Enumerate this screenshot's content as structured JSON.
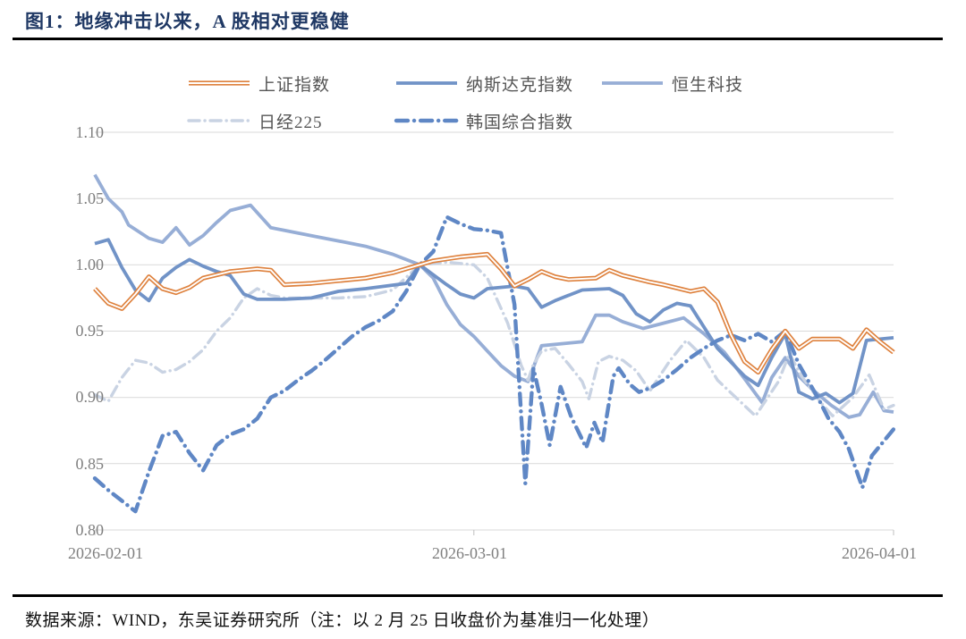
{
  "header": {
    "title": "图1：地缘冲击以来，A 股相对更稳健"
  },
  "footer": {
    "source": "数据来源：WIND，东吴证券研究所（注：以 2 月 25 日收盘价为基准归一化处理）"
  },
  "colors": {
    "title": "#1f3864",
    "axis_text": "#7f7f7f",
    "gridline": "#d9d9d9",
    "rule": "#000000"
  },
  "chart_data": {
    "type": "line",
    "title": "",
    "xlabel": "",
    "ylabel": "",
    "x_unit": "days since 2026-02-01",
    "x_tick_labels": [
      "2026-02-01",
      "2026-03-01",
      "2026-04-01"
    ],
    "x_tick_t": [
      0,
      28,
      59
    ],
    "y_tick_labels": [
      "1.10",
      "1.05",
      "1.00",
      "0.95",
      "0.90",
      "0.85",
      "0.80"
    ],
    "y_ticks": [
      1.1,
      1.05,
      1.0,
      0.95,
      0.9,
      0.85,
      0.8
    ],
    "ylim": [
      0.8,
      1.1
    ],
    "grid": "horizontal",
    "legend_position": "top",
    "normalization": "indexed to 1.00 at 2026-02-25 close",
    "series": [
      {
        "key": "sse",
        "name": "上证指数",
        "color": "#de813d",
        "style": "double",
        "points": [
          [
            0,
            0.982
          ],
          [
            1,
            0.971
          ],
          [
            2,
            0.967
          ],
          [
            3,
            0.978
          ],
          [
            4,
            0.991
          ],
          [
            5,
            0.982
          ],
          [
            6,
            0.979
          ],
          [
            7,
            0.983
          ],
          [
            8,
            0.99
          ],
          [
            10,
            0.995
          ],
          [
            12,
            0.997
          ],
          [
            13,
            0.996
          ],
          [
            14,
            0.985
          ],
          [
            16,
            0.986
          ],
          [
            18,
            0.988
          ],
          [
            20,
            0.99
          ],
          [
            22,
            0.994
          ],
          [
            24,
            1.0
          ],
          [
            25,
            1.003
          ],
          [
            27,
            1.006
          ],
          [
            29,
            1.008
          ],
          [
            30,
            0.997
          ],
          [
            31,
            0.984
          ],
          [
            32,
            0.989
          ],
          [
            33,
            0.995
          ],
          [
            34,
            0.991
          ],
          [
            35,
            0.989
          ],
          [
            37,
            0.99
          ],
          [
            38,
            0.996
          ],
          [
            39,
            0.992
          ],
          [
            41,
            0.987
          ],
          [
            42,
            0.985
          ],
          [
            44,
            0.98
          ],
          [
            45,
            0.982
          ],
          [
            46,
            0.972
          ],
          [
            47,
            0.947
          ],
          [
            48,
            0.927
          ],
          [
            49,
            0.919
          ],
          [
            50,
            0.936
          ],
          [
            51,
            0.95
          ],
          [
            52,
            0.937
          ],
          [
            53,
            0.944
          ],
          [
            55,
            0.944
          ],
          [
            56,
            0.937
          ],
          [
            57,
            0.951
          ],
          [
            58,
            0.942
          ],
          [
            59,
            0.934
          ]
        ]
      },
      {
        "key": "nasdaq",
        "name": "纳斯达克指数",
        "color": "#7193c7",
        "style": "solid",
        "points": [
          [
            0,
            1.016
          ],
          [
            1,
            1.019
          ],
          [
            2,
            0.998
          ],
          [
            3,
            0.981
          ],
          [
            4,
            0.973
          ],
          [
            5,
            0.99
          ],
          [
            6,
            0.998
          ],
          [
            7,
            1.004
          ],
          [
            8,
            0.999
          ],
          [
            9,
            0.995
          ],
          [
            10,
            0.992
          ],
          [
            11,
            0.978
          ],
          [
            12,
            0.974
          ],
          [
            14,
            0.974
          ],
          [
            16,
            0.975
          ],
          [
            18,
            0.98
          ],
          [
            20,
            0.982
          ],
          [
            23,
            0.986
          ],
          [
            24,
            1.0
          ],
          [
            26,
            0.985
          ],
          [
            27,
            0.978
          ],
          [
            28,
            0.975
          ],
          [
            29,
            0.982
          ],
          [
            31,
            0.984
          ],
          [
            32,
            0.982
          ],
          [
            33,
            0.968
          ],
          [
            34,
            0.973
          ],
          [
            36,
            0.981
          ],
          [
            38,
            0.982
          ],
          [
            39,
            0.977
          ],
          [
            40,
            0.963
          ],
          [
            41,
            0.957
          ],
          [
            42,
            0.966
          ],
          [
            43,
            0.971
          ],
          [
            44,
            0.969
          ],
          [
            46,
            0.937
          ],
          [
            48,
            0.916
          ],
          [
            49,
            0.909
          ],
          [
            50,
            0.93
          ],
          [
            51,
            0.948
          ],
          [
            52,
            0.904
          ],
          [
            53,
            0.899
          ],
          [
            54,
            0.903
          ],
          [
            55,
            0.896
          ],
          [
            56,
            0.903
          ],
          [
            57,
            0.943
          ],
          [
            58,
            0.944
          ],
          [
            59,
            0.945
          ]
        ]
      },
      {
        "key": "hstech",
        "name": "恒生科技",
        "color": "#97aed6",
        "style": "solid",
        "points": [
          [
            0,
            1.068
          ],
          [
            1,
            1.05
          ],
          [
            2,
            1.04
          ],
          [
            2.5,
            1.03
          ],
          [
            4,
            1.02
          ],
          [
            5,
            1.017
          ],
          [
            6,
            1.028
          ],
          [
            7,
            1.015
          ],
          [
            8,
            1.022
          ],
          [
            9,
            1.032
          ],
          [
            10,
            1.041
          ],
          [
            11.5,
            1.045
          ],
          [
            13,
            1.028
          ],
          [
            14,
            1.026
          ],
          [
            16,
            1.022
          ],
          [
            18,
            1.018
          ],
          [
            20,
            1.014
          ],
          [
            22,
            1.008
          ],
          [
            24,
            1.0
          ],
          [
            25,
            0.99
          ],
          [
            26,
            0.97
          ],
          [
            27,
            0.955
          ],
          [
            28,
            0.946
          ],
          [
            29,
            0.935
          ],
          [
            30,
            0.924
          ],
          [
            31,
            0.916
          ],
          [
            32,
            0.912
          ],
          [
            33,
            0.939
          ],
          [
            35,
            0.941
          ],
          [
            36,
            0.942
          ],
          [
            37,
            0.962
          ],
          [
            38,
            0.962
          ],
          [
            39,
            0.957
          ],
          [
            40.5,
            0.952
          ],
          [
            42,
            0.956
          ],
          [
            43.5,
            0.96
          ],
          [
            45,
            0.948
          ],
          [
            46.5,
            0.934
          ],
          [
            48,
            0.914
          ],
          [
            49.3,
            0.896
          ],
          [
            50,
            0.915
          ],
          [
            51,
            0.93
          ],
          [
            52,
            0.916
          ],
          [
            53,
            0.906
          ],
          [
            54.4,
            0.894
          ],
          [
            55.7,
            0.885
          ],
          [
            56.5,
            0.887
          ],
          [
            57.5,
            0.904
          ],
          [
            58.3,
            0.89
          ],
          [
            59,
            0.889
          ]
        ]
      },
      {
        "key": "nikkei",
        "name": "日经225",
        "color": "#c9d3e3",
        "style": "dash-dot",
        "points": [
          [
            0,
            0.902
          ],
          [
            1,
            0.897
          ],
          [
            2,
            0.915
          ],
          [
            3,
            0.928
          ],
          [
            4,
            0.926
          ],
          [
            5,
            0.919
          ],
          [
            6,
            0.921
          ],
          [
            7,
            0.927
          ],
          [
            8,
            0.936
          ],
          [
            9,
            0.95
          ],
          [
            10,
            0.96
          ],
          [
            11,
            0.975
          ],
          [
            12,
            0.982
          ],
          [
            13,
            0.977
          ],
          [
            14,
            0.975
          ],
          [
            16,
            0.975
          ],
          [
            18,
            0.975
          ],
          [
            20,
            0.976
          ],
          [
            22,
            0.981
          ],
          [
            24,
            1.0
          ],
          [
            26,
            1.002
          ],
          [
            28,
            1.0
          ],
          [
            29,
            0.99
          ],
          [
            30.5,
            0.956
          ],
          [
            31.5,
            0.924
          ],
          [
            32,
            0.913
          ],
          [
            32.4,
            0.925
          ],
          [
            33,
            0.935
          ],
          [
            34,
            0.937
          ],
          [
            35,
            0.925
          ],
          [
            36,
            0.912
          ],
          [
            36.5,
            0.899
          ],
          [
            37.2,
            0.927
          ],
          [
            38,
            0.931
          ],
          [
            39,
            0.928
          ],
          [
            40,
            0.92
          ],
          [
            41,
            0.905
          ],
          [
            42.5,
            0.928
          ],
          [
            43.7,
            0.943
          ],
          [
            45,
            0.93
          ],
          [
            46,
            0.913
          ],
          [
            48.8,
            0.886
          ],
          [
            50.5,
            0.912
          ],
          [
            51.3,
            0.933
          ],
          [
            52.2,
            0.916
          ],
          [
            53.8,
            0.894
          ],
          [
            54.5,
            0.886
          ],
          [
            56,
            0.9
          ],
          [
            57.2,
            0.917
          ],
          [
            58.3,
            0.891
          ],
          [
            59,
            0.894
          ]
        ]
      },
      {
        "key": "korea",
        "name": "韩国综合指数",
        "color": "#5f87c5",
        "style": "dash-dot-thick",
        "points": [
          [
            0,
            0.839
          ],
          [
            1,
            0.83
          ],
          [
            2,
            0.822
          ],
          [
            3,
            0.814
          ],
          [
            4,
            0.844
          ],
          [
            5,
            0.871
          ],
          [
            6,
            0.874
          ],
          [
            7,
            0.858
          ],
          [
            8,
            0.845
          ],
          [
            9,
            0.864
          ],
          [
            10,
            0.872
          ],
          [
            11,
            0.876
          ],
          [
            12,
            0.884
          ],
          [
            13,
            0.9
          ],
          [
            14,
            0.905
          ],
          [
            15,
            0.913
          ],
          [
            16,
            0.92
          ],
          [
            17,
            0.928
          ],
          [
            18,
            0.937
          ],
          [
            19,
            0.946
          ],
          [
            20,
            0.953
          ],
          [
            21,
            0.958
          ],
          [
            22,
            0.965
          ],
          [
            23,
            0.98
          ],
          [
            24,
            1.0
          ],
          [
            25,
            1.01
          ],
          [
            26,
            1.036
          ],
          [
            27,
            1.031
          ],
          [
            28,
            1.027
          ],
          [
            29,
            1.026
          ],
          [
            30,
            1.024
          ],
          [
            31,
            0.97
          ],
          [
            31.8,
            0.835
          ],
          [
            32.4,
            0.922
          ],
          [
            33,
            0.895
          ],
          [
            33.6,
            0.864
          ],
          [
            34.4,
            0.908
          ],
          [
            35.2,
            0.885
          ],
          [
            36.3,
            0.862
          ],
          [
            36.9,
            0.881
          ],
          [
            37.5,
            0.866
          ],
          [
            38.3,
            0.916
          ],
          [
            38.7,
            0.922
          ],
          [
            39.5,
            0.91
          ],
          [
            40.2,
            0.904
          ],
          [
            41,
            0.907
          ],
          [
            42,
            0.913
          ],
          [
            43,
            0.921
          ],
          [
            44,
            0.93
          ],
          [
            45,
            0.937
          ],
          [
            46,
            0.943
          ],
          [
            47,
            0.947
          ],
          [
            48,
            0.943
          ],
          [
            49,
            0.948
          ],
          [
            50,
            0.942
          ],
          [
            51,
            0.95
          ],
          [
            52,
            0.925
          ],
          [
            53.5,
            0.898
          ],
          [
            54.2,
            0.884
          ],
          [
            55,
            0.874
          ],
          [
            55.7,
            0.861
          ],
          [
            56.7,
            0.832
          ],
          [
            57.4,
            0.856
          ],
          [
            58.2,
            0.866
          ],
          [
            59,
            0.876
          ]
        ]
      }
    ]
  }
}
